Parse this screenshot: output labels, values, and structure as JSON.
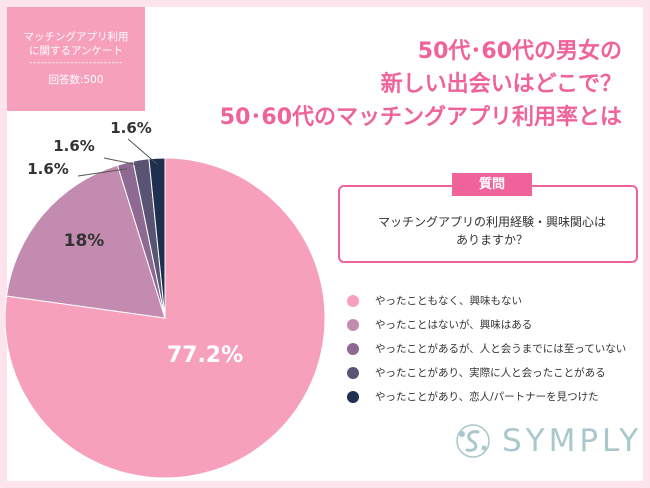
{
  "badge": {
    "line1": "マッチングアプリ利用",
    "line2": "に関するアンケート",
    "divider": "-------------------------",
    "respondents": "回答数:500"
  },
  "title": {
    "line1": "50代･60代の男女の",
    "line2": "新しい出会いはどこで？",
    "line3": "50･60代のマッチングアプリ利用率とは"
  },
  "question": {
    "label": "質問",
    "text_line1": "マッチングアプリの利用経験・興味関心は",
    "text_line2": "ありますか？"
  },
  "chart_data": {
    "type": "pie",
    "slices": [
      {
        "label": "やったこともなく、興味もない",
        "value": 77.2,
        "value_label": "77.2%",
        "color": "#f7a0bc"
      },
      {
        "label": "やったことはないが、興味はある",
        "value": 18.0,
        "value_label": "18%",
        "color": "#c48bb0"
      },
      {
        "label": "やったことがあるが、人と会うまでには至っていない",
        "value": 1.6,
        "value_label": "1.6%",
        "color": "#8e6a93"
      },
      {
        "label": "やったことがあり、実際に人と会ったことがある",
        "value": 1.6,
        "value_label": "1.6%",
        "color": "#5a5474"
      },
      {
        "label": "やったことがあり、恋人/パートナーを見つけた",
        "value": 1.6,
        "value_label": "1.6%",
        "color": "#1f2f4f"
      }
    ]
  },
  "logo": {
    "text": "SYMPLY"
  }
}
